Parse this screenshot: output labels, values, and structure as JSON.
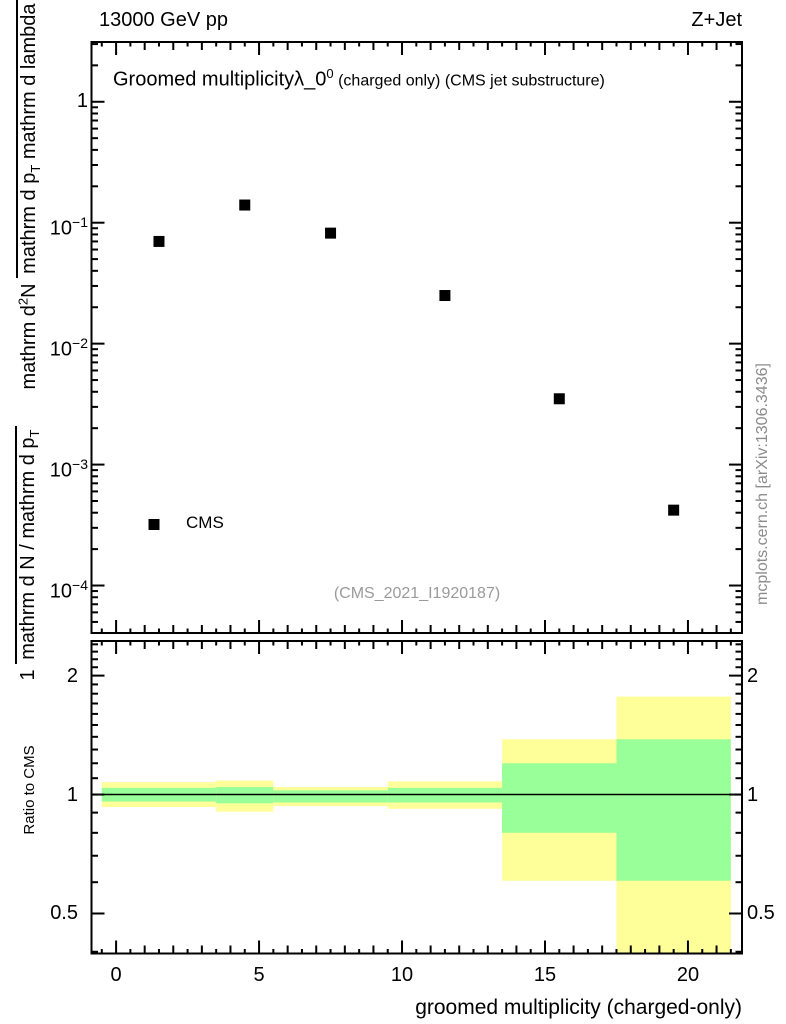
{
  "header": {
    "left": "13000 GeV pp",
    "right": "Z+Jet"
  },
  "title": {
    "a": "Groomed multiplicity",
    "b": "λ_0",
    "b_sup": "0",
    "c": " (charged only) (CMS jet substructure)"
  },
  "citation": "(CMS_2021_I1920187)",
  "side_note": "mcplots.cern.ch [arXiv:1306.3436]",
  "ylabel": {
    "f1_num": "1",
    "f1_den_a": "mathrm d N / mathrm d p",
    "f1_den_sub": "T",
    "f2_num_a": "mathrm d",
    "f2_num_sup": "2",
    "f2_num_b": "N",
    "f2_den_a": "mathrm d p",
    "f2_den_sub": "T",
    "f2_den_b": " mathrm d lambda"
  },
  "colors": {
    "marker": "#000000",
    "band_yellow": "#ffff99",
    "band_green": "#99ff99",
    "frame": "#000000",
    "citation_gray": "#9a9a9a",
    "note_gray": "#8c8c8c"
  },
  "chart_data": [
    {
      "type": "scatter",
      "title": "Groomed multiplicity λ_0^0 (charged only) (CMS jet substructure)",
      "xlabel": "groomed multiplicity (charged-only)",
      "ylabel": "1/(mathrm d N/mathrm d p_T) mathrm d^2 N/(mathrm d p_T mathrm d lambda)",
      "yscale": "log",
      "xlim": [
        -0.86,
        21.89
      ],
      "ylim": [
        4.05e-05,
        3.12
      ],
      "x": [
        1.5,
        4.5,
        7.5,
        11.5,
        15.5,
        19.5
      ],
      "y": [
        0.07,
        0.14,
        0.082,
        0.025,
        0.0035,
        0.00042
      ],
      "marker": "filled-square",
      "legend": {
        "label": "CMS"
      },
      "xticks": [
        {
          "u": 0,
          "label": "0"
        },
        {
          "u": 5,
          "label": "5"
        },
        {
          "u": 10,
          "label": "10"
        },
        {
          "u": 15,
          "label": "15"
        },
        {
          "u": 20,
          "label": "20"
        }
      ],
      "yticks": [
        {
          "v": 1,
          "base": "1",
          "sup": ""
        },
        {
          "v": 0.1,
          "base": "10",
          "sup": "−1"
        },
        {
          "v": 0.01,
          "base": "10",
          "sup": "−2"
        },
        {
          "v": 0.001,
          "base": "10",
          "sup": "−3"
        },
        {
          "v": 0.0001,
          "base": "10",
          "sup": "−4"
        }
      ]
    },
    {
      "type": "ratio-bands",
      "ylabel": "Ratio to CMS",
      "yscale": "log",
      "ylim": [
        0.396,
        2.447
      ],
      "reference_line": 1,
      "yticks": [
        {
          "v": 2,
          "label": "2"
        },
        {
          "v": 1,
          "label": "1"
        },
        {
          "v": 0.5,
          "label": "0.5"
        }
      ],
      "bins": [
        {
          "x0": -0.5,
          "x1": 3.5,
          "yellow_lo": 0.93,
          "yellow_hi": 1.075,
          "green_lo": 0.96,
          "green_hi": 1.04
        },
        {
          "x0": 3.5,
          "x1": 5.5,
          "yellow_lo": 0.905,
          "yellow_hi": 1.085,
          "green_lo": 0.95,
          "green_hi": 1.045
        },
        {
          "x0": 5.5,
          "x1": 9.5,
          "yellow_lo": 0.935,
          "yellow_hi": 1.045,
          "green_lo": 0.955,
          "green_hi": 1.025
        },
        {
          "x0": 9.5,
          "x1": 13.5,
          "yellow_lo": 0.92,
          "yellow_hi": 1.08,
          "green_lo": 0.955,
          "green_hi": 1.04
        },
        {
          "x0": 13.5,
          "x1": 17.5,
          "yellow_lo": 0.605,
          "yellow_hi": 1.38,
          "green_lo": 0.8,
          "green_hi": 1.2
        },
        {
          "x0": 17.5,
          "x1": 21.5,
          "yellow_lo": 0.37,
          "yellow_hi": 1.77,
          "green_lo": 0.605,
          "green_hi": 1.38
        }
      ]
    }
  ]
}
